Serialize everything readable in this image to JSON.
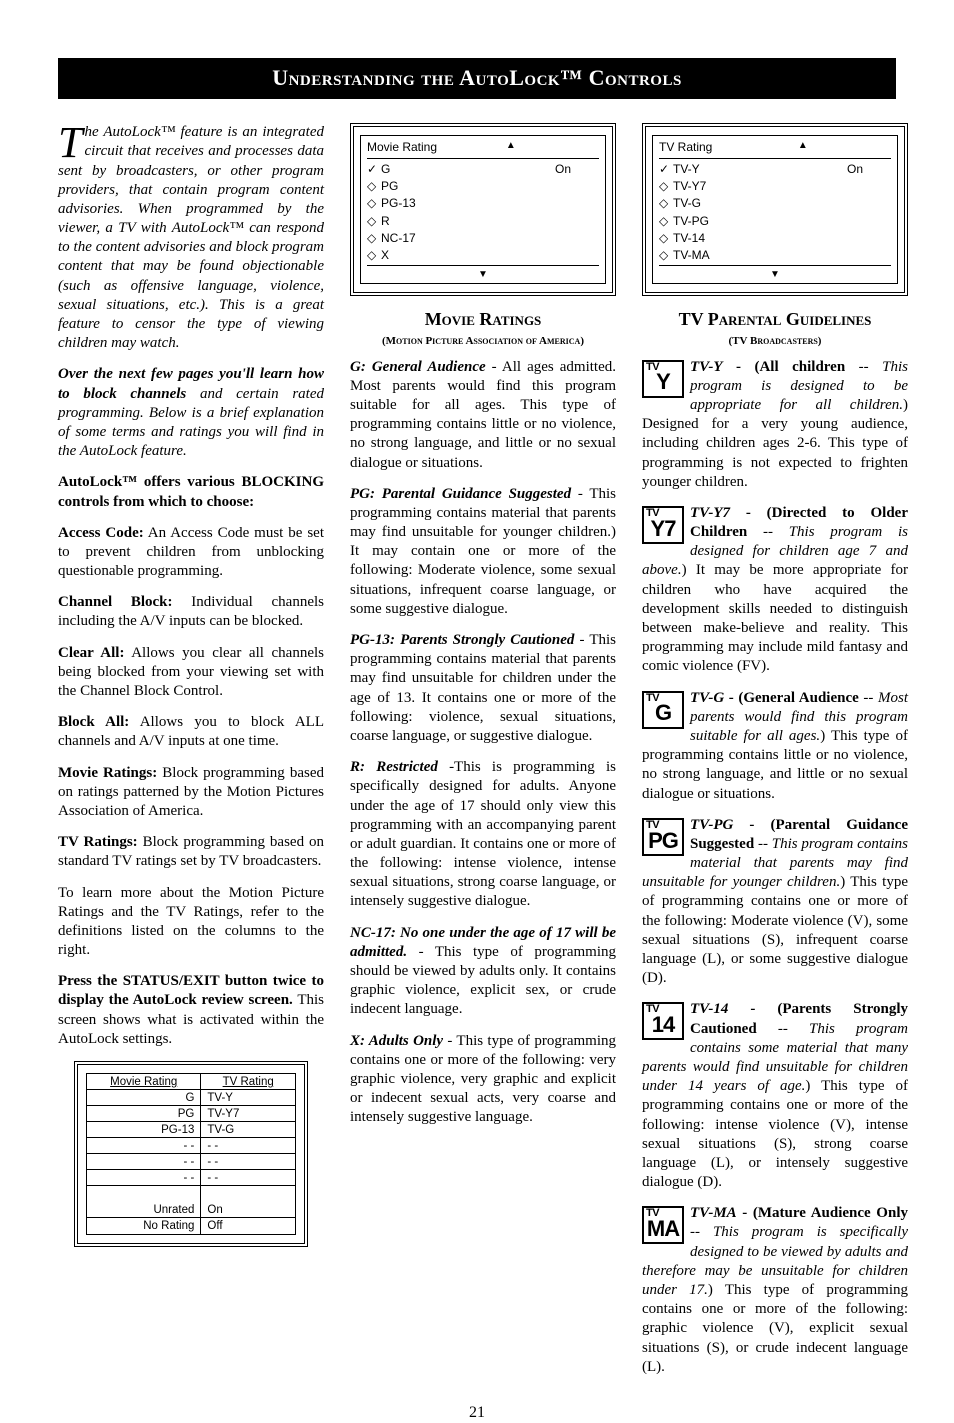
{
  "header": {
    "title": "Understanding the AutoLock™ Controls"
  },
  "page_number": "21",
  "col1": {
    "intro": "he AutoLock™ feature is an integrated circuit that receives and processes data sent by broadcasters, or other program providers, that contain program content advisories. When programmed by the viewer, a TV with AutoLock™ can respond to the content advisories and block program content that may be found objectionable (such as offensive language, violence, sexual situations, etc.). This is a great feature to censor the type of viewing children may watch.",
    "p2_lead": "Over the next few pages you'll learn how to block channels",
    "p2_rest": " and certain rated programming. Below is a brief explanation of some terms and ratings you will find in the AutoLock feature.",
    "p3": "AutoLock™ offers various BLOCKING controls from which to choose:",
    "items": [
      {
        "b": "Access Code:",
        "t": " An Access Code must be set to prevent children from unblocking questionable programming."
      },
      {
        "b": "Channel Block:",
        "t": " Individual channels including the A/V inputs can be blocked."
      },
      {
        "b": "Clear All:",
        "t": " Allows you clear all channels being blocked from your viewing set with the Channel Block Control."
      },
      {
        "b": "Block All:",
        "t": " Allows you to block ALL channels and A/V inputs at one time."
      },
      {
        "b": "Movie Ratings:",
        "t": " Block programming based on ratings patterned by the Motion Pictures Association of America."
      },
      {
        "b": "TV Ratings:",
        "t": " Block programming based on standard TV ratings set by TV broadcasters."
      }
    ],
    "p4": "To learn more about the Motion Picture Ratings and the TV Ratings, refer to the definitions listed on the columns to the right.",
    "p5_b": "Press the STATUS/EXIT button twice to display the AutoLock review screen.",
    "p5_t": " This screen shows what is activated within the AutoLock settings.",
    "review_table": {
      "left_header": "Movie Rating",
      "right_header": "TV Rating",
      "rows": [
        [
          "G",
          "TV-Y"
        ],
        [
          "PG",
          "TV-Y7"
        ],
        [
          "PG-13",
          "TV-G"
        ],
        [
          "- -",
          "- -"
        ],
        [
          "- -",
          "- -"
        ],
        [
          "- -",
          "- -"
        ]
      ],
      "footer_rows": [
        [
          "Unrated",
          "On"
        ],
        [
          "No Rating",
          "Off"
        ]
      ]
    }
  },
  "movie_menu": {
    "title": "Movie Rating",
    "rows": [
      {
        "mark": "✓",
        "label": "G",
        "state": "On"
      },
      {
        "mark": "◇",
        "label": "PG",
        "state": ""
      },
      {
        "mark": "◇",
        "label": "PG-13",
        "state": ""
      },
      {
        "mark": "◇",
        "label": "R",
        "state": ""
      },
      {
        "mark": "◇",
        "label": "NC-17",
        "state": ""
      },
      {
        "mark": "◇",
        "label": "X",
        "state": ""
      }
    ]
  },
  "movie_section": {
    "title": "Movie Ratings",
    "sub": "(Motion Picture Association of America)",
    "ratings": [
      {
        "h": "G: General Audience",
        "t": " - All ages admitted. Most parents would find this program suitable for all ages. This type of programming contains little or no violence, no strong language, and little or no sexual dialogue or situations."
      },
      {
        "h": "PG: Parental Guidance Suggested",
        "t": " - This programming contains material that parents may find unsuitable for younger children.) It may contain one or more of the following: Moderate violence, some sexual situations, infrequent coarse language, or some suggestive dialogue."
      },
      {
        "h": "PG-13: Parents Strongly Cautioned",
        "t": " - This programming contains material that parents may find unsuitable for children under the age of 13. It contains one or more of the following: violence, sexual situations, coarse language, or suggestive dialogue."
      },
      {
        "h": "R: Restricted",
        "t": " -This is programming is specifically designed for adults. Anyone under the age of 17 should only view this programming with an accompanying parent or adult guardian. It contains one or more of the following: intense violence, intense sexual situations, strong coarse language, or intensely suggestive dialogue."
      },
      {
        "h": "NC-17: No one under the age of 17 will be admitted.",
        "t": " - This type of programming should be viewed by adults only. It contains graphic violence, explicit sex, or crude indecent language."
      },
      {
        "h": "X: Adults Only",
        "t": " - This type of programming contains one or more of the following: very graphic violence, very graphic and explicit or indecent sexual acts, very coarse and intensely suggestive language."
      }
    ]
  },
  "tv_menu": {
    "title": "TV Rating",
    "rows": [
      {
        "mark": "✓",
        "label": "TV-Y",
        "state": "On"
      },
      {
        "mark": "◇",
        "label": "TV-Y7",
        "state": ""
      },
      {
        "mark": "◇",
        "label": "TV-G",
        "state": ""
      },
      {
        "mark": "◇",
        "label": "TV-PG",
        "state": ""
      },
      {
        "mark": "◇",
        "label": "TV-14",
        "state": ""
      },
      {
        "mark": "◇",
        "label": "TV-MA",
        "state": ""
      }
    ]
  },
  "tv_section": {
    "title": "TV Parental Guidelines",
    "sub": "(TV Broadcasters)",
    "ratings": [
      {
        "icon": "Y",
        "h": "TV-Y",
        "b": " - (All children",
        "i": " -- This program is designed to be appropriate for all children.",
        "t": ") Designed for a very young audience, including children ages 2-6. This type of programming is not expected to frighten younger children."
      },
      {
        "icon": "Y7",
        "h": "TV-Y7",
        "b": " - (Directed to Older Children",
        "i": " -- This program is designed for children age 7 and above.",
        "t": ") It may be more appropriate for children who have acquired the development skills needed to distinguish between make-believe and reality. This programming may include mild fantasy and comic violence (FV)."
      },
      {
        "icon": "G",
        "h": "TV-G",
        "b": " - (General Audience",
        "i": " -- Most parents would find this program suitable for all ages.",
        "t": ") This type of programming contains little or no violence, no strong language, and little or no sexual dialogue or situations."
      },
      {
        "icon": "PG",
        "h": "TV-PG",
        "b": " - (Parental Guidance Suggested",
        "i": " -- This program contains material that parents may find unsuitable for younger children.",
        "t": ") This type of programming contains one or more of the following: Moderate violence (V), some sexual situations (S), infrequent coarse language (L), or some suggestive dialogue (D)."
      },
      {
        "icon": "14",
        "h": "TV-14",
        "b": " - (Parents Strongly Cautioned",
        "i": " -- This program contains some material that many parents would find unsuitable for children under 14 years of age.",
        "t": ") This type of programming contains one or more of the following: intense violence (V), intense sexual situations (S), strong coarse language (L), or intensely suggestive dialogue (D)."
      },
      {
        "icon": "MA",
        "h": "TV-MA",
        "b": " - (Mature Audience Only",
        "i": " -- This program is specifically designed to be viewed by adults and therefore may be unsuitable for children under 17.",
        "t": ") This type of programming contains one or more of the following: graphic violence (V), explicit sexual situations (S), or crude indecent language (L)."
      }
    ]
  }
}
